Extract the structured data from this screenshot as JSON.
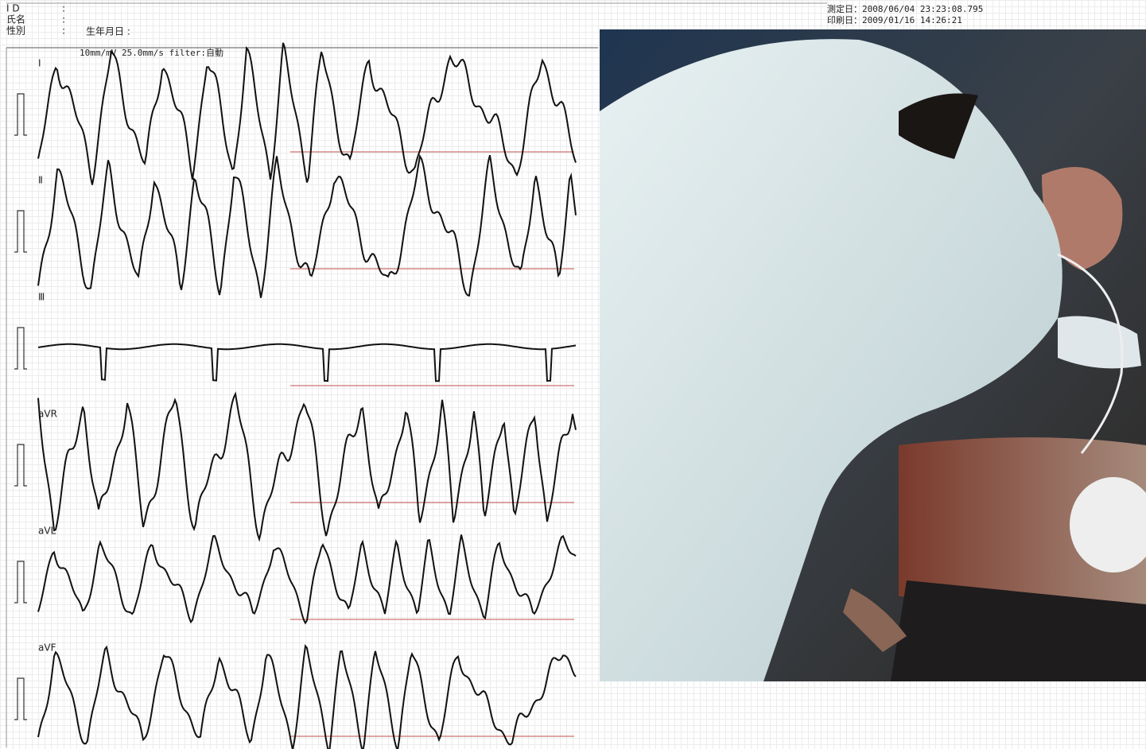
{
  "header": {
    "rows": [
      {
        "label": "I D",
        "sep": ":"
      },
      {
        "label": "氏名",
        "sep": ":"
      },
      {
        "label": "性別",
        "sep": ":"
      }
    ],
    "birth_date_label": "生年月日 :",
    "measured": "測定日：2008/06/04 23:23:08.795",
    "printed": "印刷日：2009/01/16 14:26:21"
  },
  "settings": "10mm/mV 25.0mm/s filter:自動",
  "leads": [
    "Ⅰ",
    "Ⅱ",
    "Ⅲ",
    "aVR",
    "aVL",
    "aVF"
  ]
}
